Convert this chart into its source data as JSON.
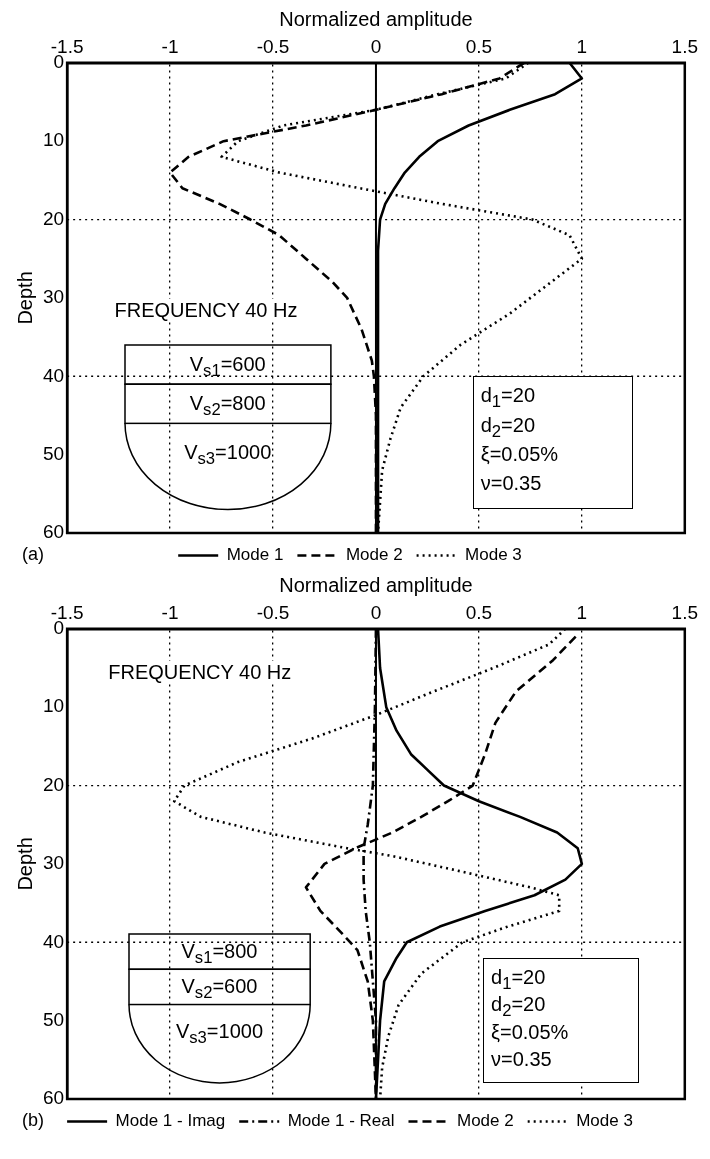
{
  "chart_data": [
    {
      "type": "line",
      "xlabel": "Normalized amplitude",
      "ylabel": "Depth",
      "xlim": [
        -1.5,
        1.5
      ],
      "xticks": [
        -1.5,
        -1,
        -0.5,
        0,
        0.5,
        1,
        1.5
      ],
      "ylim": [
        60,
        0
      ],
      "yticks": [
        0,
        10,
        20,
        30,
        40,
        50,
        60
      ],
      "grid": "x",
      "legend": "bottom",
      "marker": "none",
      "ref_lines": [
        {
          "axis": "x",
          "value": 0,
          "line_style": "solid",
          "color": "#000000"
        },
        {
          "axis": "y",
          "value": 20,
          "line_style": "dotted",
          "color": "#000000"
        },
        {
          "axis": "y",
          "value": 40,
          "line_style": "dotted",
          "color": "#000000"
        }
      ],
      "annotations": [
        "FREQUENCY 40 Hz",
        "V$_{s1}$=600",
        "V$_{s2}$=800",
        "V$_{s3}$=1000",
        "d$_{1}$=20",
        "d$_{2}$=20",
        "ξ=0.05%",
        "ν=0.35",
        "(a)"
      ],
      "series": [
        {
          "name": "Mode 1",
          "color": "#000000",
          "line_style": "solid",
          "x": [
            0.94,
            1.0,
            0.87,
            0.65,
            0.45,
            0.3,
            0.21,
            0.14,
            0.09,
            0.045,
            0.02,
            0.01,
            0.01
          ],
          "values": [
            0,
            2,
            4,
            6,
            8,
            10,
            12,
            14,
            16,
            18,
            20,
            24,
            60
          ]
        },
        {
          "name": "Mode 2",
          "color": "#000000",
          "line_style": "dashed",
          "x": [
            0.72,
            0.6,
            0.32,
            0,
            -0.34,
            -0.74,
            -0.91,
            -1.0,
            -0.94,
            -0.76,
            -0.61,
            -0.47,
            -0.34,
            -0.21,
            -0.14,
            -0.07,
            -0.02,
            -0.01,
            0,
            0
          ],
          "values": [
            0,
            2,
            4,
            6,
            8,
            10,
            12,
            14,
            16,
            18,
            20,
            22,
            25,
            28,
            30,
            34,
            38,
            40,
            45,
            60
          ]
        },
        {
          "name": "Mode 3",
          "color": "#000000",
          "line_style": "dotted",
          "x": [
            0.74,
            0.63,
            0.3,
            0,
            -0.45,
            -0.67,
            -0.75,
            -0.47,
            -0.08,
            0.32,
            0.76,
            0.94,
            1.0,
            0.85,
            0.65,
            0.41,
            0.23,
            0.12,
            0.07,
            0.03,
            0.02,
            0.01
          ],
          "values": [
            0,
            2,
            4,
            6,
            8,
            10,
            12,
            14,
            16,
            18,
            20,
            22,
            25,
            28,
            32,
            36,
            40,
            44,
            48,
            52,
            56,
            60
          ]
        }
      ]
    },
    {
      "type": "line",
      "xlabel": "Normalized amplitude",
      "ylabel": "Depth",
      "xlim": [
        -1.5,
        1.5
      ],
      "xticks": [
        -1.5,
        -1,
        -0.5,
        0,
        0.5,
        1,
        1.5
      ],
      "ylim": [
        60,
        0
      ],
      "yticks": [
        0,
        10,
        20,
        30,
        40,
        50,
        60
      ],
      "grid": "x",
      "legend": "bottom",
      "marker": "none",
      "ref_lines": [
        {
          "axis": "x",
          "value": 0,
          "line_style": "solid",
          "color": "#000000"
        },
        {
          "axis": "y",
          "value": 20,
          "line_style": "dotted",
          "color": "#000000"
        },
        {
          "axis": "y",
          "value": 40,
          "line_style": "dotted",
          "color": "#000000"
        }
      ],
      "annotations": [
        "FREQUENCY 40 Hz",
        "V$_{s1}$=800",
        "V$_{s2}$=600",
        "V$_{s3}$=1000",
        "d$_{1}$=20",
        "d$_{2}$=20",
        "ξ=0.05%",
        "ν=0.35",
        "(b)"
      ],
      "series": [
        {
          "name": "Mode 1 - Imag",
          "color": "#000000",
          "line_style": "solid",
          "x": [
            0.01,
            0.02,
            0.05,
            0.1,
            0.17,
            0.25,
            0.33,
            0.5,
            0.7,
            0.88,
            0.98,
            1.0,
            0.92,
            0.77,
            0.53,
            0.31,
            0.15,
            0.1,
            0.04,
            0.02,
            0
          ],
          "values": [
            0,
            5,
            10,
            13,
            16,
            18,
            20,
            22,
            24,
            26,
            28,
            30,
            32,
            34,
            36,
            38,
            40,
            42,
            45,
            50,
            60
          ]
        },
        {
          "name": "Mode 1 - Real",
          "color": "#000000",
          "line_style": "dashdot",
          "x": [
            0,
            -0.005,
            -0.015,
            -0.04,
            -0.06,
            -0.06,
            -0.05,
            -0.03,
            -0.015,
            0,
            0
          ],
          "values": [
            0,
            10,
            20,
            25,
            28,
            32,
            36,
            40,
            45,
            50,
            60
          ]
        },
        {
          "name": "Mode 2",
          "color": "#000000",
          "line_style": "dashed",
          "x": [
            0.97,
            0.86,
            0.68,
            0.58,
            0.53,
            0.47,
            0.35,
            0.22,
            0.08,
            -0.1,
            -0.25,
            -0.34,
            -0.27,
            -0.16,
            -0.09,
            -0.04,
            -0.015,
            0
          ],
          "values": [
            1,
            4,
            8,
            12,
            16,
            20,
            22,
            24,
            26,
            28,
            30,
            33,
            36,
            39,
            41,
            45,
            50,
            60
          ]
        },
        {
          "name": "Mode 3",
          "color": "#000000",
          "line_style": "dotted",
          "x": [
            0.92,
            0.84,
            0.57,
            0.28,
            0,
            -0.31,
            -0.67,
            -0.93,
            -0.98,
            -0.85,
            -0.54,
            -0.14,
            0.08,
            0.42,
            0.75,
            0.89,
            0.89,
            0.64,
            0.42,
            0.22,
            0.11,
            0.06,
            0.03,
            0.02
          ],
          "values": [
            0,
            2,
            5,
            8,
            11,
            14,
            17,
            20,
            22,
            24,
            26,
            28,
            29,
            31,
            33,
            34,
            36,
            38,
            40,
            44,
            48,
            52,
            56,
            60
          ]
        }
      ]
    }
  ]
}
